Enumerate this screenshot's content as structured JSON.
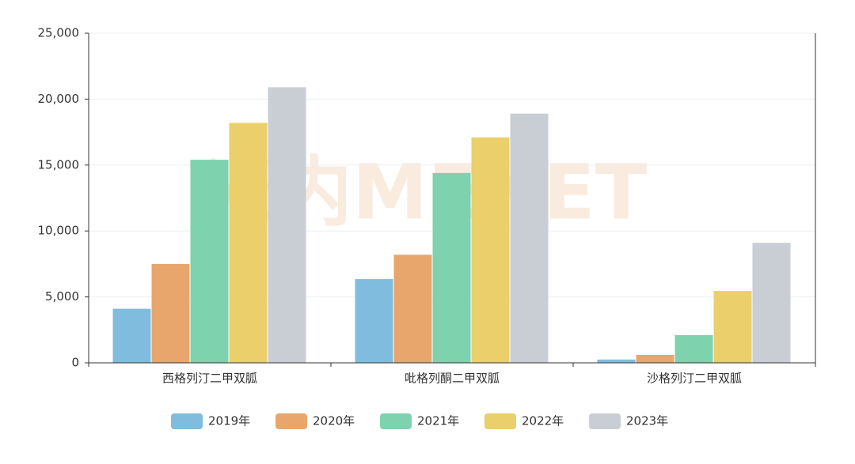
{
  "chart_data": {
    "type": "bar",
    "watermark": "米内MENET",
    "categories": [
      "西格列汀二甲双胍",
      "吡格列酮二甲双胍",
      "沙格列汀二甲双胍"
    ],
    "series": [
      {
        "name": "2019年",
        "color": "#80bcdd",
        "values": [
          4100,
          6350,
          250
        ]
      },
      {
        "name": "2020年",
        "color": "#e8a66c",
        "values": [
          7500,
          8200,
          600
        ]
      },
      {
        "name": "2021年",
        "color": "#7ed3ae",
        "values": [
          15400,
          14400,
          2100
        ]
      },
      {
        "name": "2022年",
        "color": "#eacf6b",
        "values": [
          18200,
          17100,
          5450
        ]
      },
      {
        "name": "2023年",
        "color": "#c9ced4",
        "values": [
          20900,
          18900,
          9100
        ]
      }
    ],
    "ylim": [
      0,
      25000
    ],
    "yticks": [
      0,
      {
        "value": 5000,
        "label": "5,000"
      },
      {
        "value": 10000,
        "label": "10,000"
      },
      {
        "value": 15000,
        "label": "15,000"
      },
      {
        "value": 20000,
        "label": "20,000"
      },
      {
        "value": 25000,
        "label": "25,000"
      }
    ],
    "grid": true,
    "legend": "bottom"
  }
}
